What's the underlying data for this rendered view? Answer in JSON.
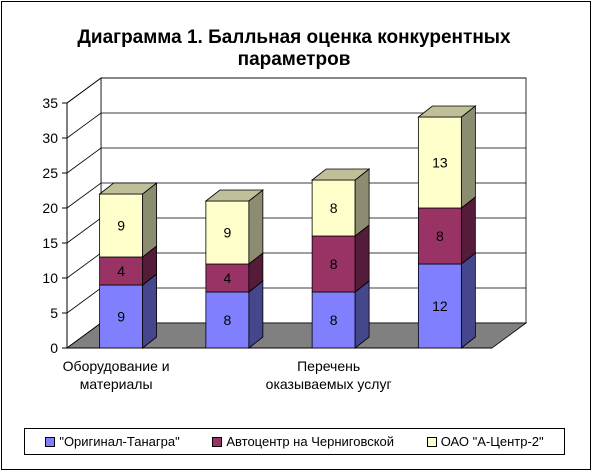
{
  "chart_data": {
    "type": "bar",
    "stacked": true,
    "three_d": true,
    "title": [
      "Диаграмма 1. Балльная оценка конкурентных",
      "параметров"
    ],
    "categories": [
      "Оборудование и материалы",
      "",
      "Перечень оказываемых услуг",
      ""
    ],
    "category_label_lines": [
      [
        "Оборудование и",
        "материалы"
      ],
      [],
      [
        "Перечень",
        "оказываемых услуг"
      ],
      []
    ],
    "series": [
      {
        "name": "\"Оригинал-Танагра\"",
        "values": [
          9,
          8,
          8,
          12
        ],
        "color": "#8080ff"
      },
      {
        "name": "Автоцентр на Черниговской",
        "values": [
          4,
          4,
          8,
          8
        ],
        "color": "#993366"
      },
      {
        "name": "ОАО \"А-Центр-2\"",
        "values": [
          9,
          9,
          8,
          13
        ],
        "color": "#ffffcc"
      }
    ],
    "ylim": [
      0,
      35
    ],
    "yticks": [
      "0",
      "5",
      "10",
      "15",
      "20",
      "25",
      "30",
      "35"
    ],
    "grid": true,
    "legend": "bottom"
  }
}
